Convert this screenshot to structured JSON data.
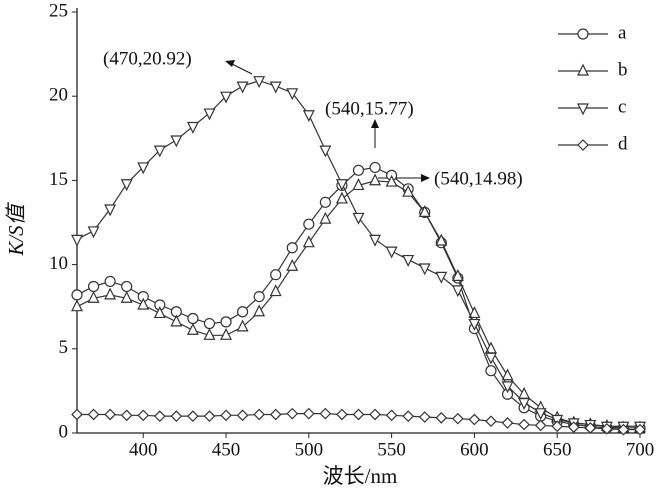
{
  "chart_data": {
    "type": "line",
    "xlabel": "波长/nm",
    "ylabel": "K/S值",
    "x": [
      360,
      370,
      380,
      390,
      400,
      410,
      420,
      430,
      440,
      450,
      460,
      470,
      480,
      490,
      500,
      510,
      520,
      530,
      540,
      550,
      560,
      570,
      580,
      590,
      600,
      610,
      620,
      630,
      640,
      650,
      660,
      670,
      680,
      690,
      700
    ],
    "series": [
      {
        "name": "a",
        "color": "#333333",
        "marker": "circle",
        "values": [
          8.2,
          8.7,
          9.0,
          8.7,
          8.1,
          7.6,
          7.2,
          6.8,
          6.5,
          6.6,
          7.2,
          8.1,
          9.4,
          11.0,
          12.4,
          13.7,
          14.7,
          15.6,
          15.77,
          15.3,
          14.5,
          13.1,
          11.3,
          9.2,
          6.2,
          3.7,
          2.3,
          1.5,
          1.0,
          0.7,
          0.5,
          0.4,
          0.3,
          0.3,
          0.3
        ]
      },
      {
        "name": "b",
        "color": "#333333",
        "marker": "triangle-up",
        "values": [
          7.5,
          8.0,
          8.2,
          8.0,
          7.6,
          7.1,
          6.6,
          6.1,
          5.8,
          5.8,
          6.3,
          7.2,
          8.4,
          9.9,
          11.3,
          12.7,
          13.9,
          14.7,
          14.98,
          14.9,
          14.3,
          13.1,
          11.4,
          9.3,
          7.1,
          5.0,
          3.4,
          2.3,
          1.5,
          0.9,
          0.6,
          0.5,
          0.4,
          0.3,
          0.3
        ]
      },
      {
        "name": "c",
        "color": "#333333",
        "marker": "triangle-down",
        "values": [
          11.5,
          12.0,
          13.3,
          14.8,
          15.8,
          16.8,
          17.4,
          18.2,
          19.0,
          20.0,
          20.6,
          20.92,
          20.6,
          20.2,
          18.9,
          16.8,
          14.8,
          12.8,
          11.5,
          10.8,
          10.3,
          9.8,
          9.3,
          8.5,
          6.5,
          4.5,
          2.8,
          1.8,
          1.2,
          0.8,
          0.6,
          0.5,
          0.4,
          0.4,
          0.4
        ]
      },
      {
        "name": "d",
        "color": "#333333",
        "marker": "diamond",
        "values": [
          1.1,
          1.1,
          1.1,
          1.05,
          1.05,
          1.0,
          1.0,
          1.0,
          1.0,
          1.05,
          1.05,
          1.1,
          1.1,
          1.15,
          1.15,
          1.15,
          1.1,
          1.1,
          1.1,
          1.05,
          1.0,
          0.95,
          0.9,
          0.85,
          0.8,
          0.7,
          0.6,
          0.5,
          0.45,
          0.4,
          0.35,
          0.3,
          0.25,
          0.2,
          0.2
        ]
      }
    ],
    "annotations": [
      "(470,20.92)",
      "(540,15.77)",
      "(540,14.98)"
    ],
    "xlim": [
      360,
      700
    ],
    "xticks": [
      400,
      450,
      500,
      550,
      600,
      650,
      700
    ],
    "ylim": [
      0,
      25
    ],
    "yticks": [
      0,
      5,
      10,
      15,
      20,
      25
    ],
    "legend": "upper right"
  }
}
